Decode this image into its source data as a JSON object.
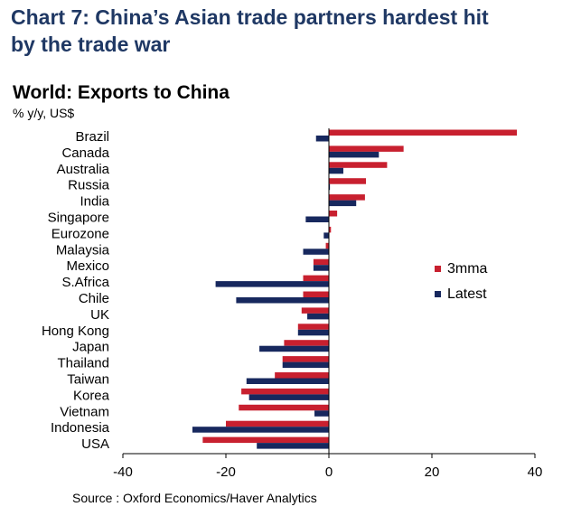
{
  "header": {
    "title_line1": "Chart 7: China’s Asian trade partners hardest hit",
    "title_line2": "by the trade war"
  },
  "chart_data": {
    "type": "bar",
    "orientation": "horizontal",
    "title": "World: Exports to China",
    "ylabel": "% y/y, US$",
    "xlim": [
      -40,
      40
    ],
    "xticks": [
      "-40",
      "-20",
      "0",
      "20",
      "40"
    ],
    "categories": [
      "Brazil",
      "Canada",
      "Australia",
      "Russia",
      "India",
      "Singapore",
      "Eurozone",
      "Malaysia",
      "Mexico",
      "S.Africa",
      "Chile",
      "UK",
      "Hong Kong",
      "Japan",
      "Thailand",
      "Taiwan",
      "Korea",
      "Vietnam",
      "Indonesia",
      "USA"
    ],
    "series": [
      {
        "name": "3mma",
        "color": "#c8202f",
        "values": [
          36.5,
          14.5,
          11.3,
          7.2,
          7.0,
          1.6,
          0.4,
          -0.6,
          -3.0,
          -5.0,
          -5.0,
          -5.3,
          -6.0,
          -8.7,
          -9.0,
          -10.5,
          -17.0,
          -17.5,
          -20.0,
          -24.5
        ]
      },
      {
        "name": "Latest",
        "color": "#17285e",
        "values": [
          -2.5,
          9.7,
          2.8,
          0.2,
          5.3,
          -4.5,
          -1.0,
          -5.0,
          -3.0,
          -22.0,
          -18.0,
          -4.2,
          -6.0,
          -13.5,
          -9.0,
          -16.0,
          -15.5,
          -2.8,
          -26.5,
          -14.0
        ]
      }
    ],
    "source": "Source : Oxford Economics/Haver Analytics"
  }
}
